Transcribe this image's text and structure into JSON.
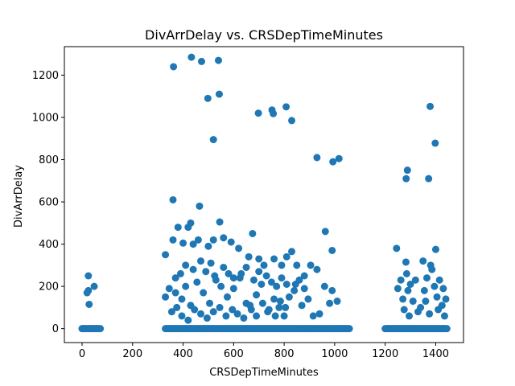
{
  "chart_data": {
    "type": "scatter",
    "title": "DivArrDelay vs. CRSDepTimeMinutes",
    "xlabel": "CRSDepTimeMinutes",
    "ylabel": "DivArrDelay",
    "xlim": [
      -70,
      1510
    ],
    "ylim": [
      -66,
      1335
    ],
    "xticks": [
      0,
      200,
      400,
      600,
      800,
      1000,
      1200,
      1400
    ],
    "yticks": [
      0,
      200,
      400,
      600,
      800,
      1000,
      1200
    ],
    "grid": false,
    "legend": "none",
    "marker_color": "#1f77b4",
    "zero_bands": [
      [
        0,
        75
      ],
      [
        330,
        1058
      ],
      [
        1200,
        1445
      ]
    ],
    "points": [
      [
        25,
        250
      ],
      [
        20,
        170
      ],
      [
        25,
        180
      ],
      [
        28,
        115
      ],
      [
        48,
        200
      ],
      [
        362,
        1240
      ],
      [
        433,
        1285
      ],
      [
        473,
        1265
      ],
      [
        540,
        1270
      ],
      [
        543,
        1110
      ],
      [
        498,
        1090
      ],
      [
        520,
        895
      ],
      [
        698,
        1020
      ],
      [
        752,
        1035
      ],
      [
        757,
        1018
      ],
      [
        808,
        1050
      ],
      [
        830,
        985
      ],
      [
        930,
        810
      ],
      [
        993,
        790
      ],
      [
        1017,
        805
      ],
      [
        360,
        610
      ],
      [
        465,
        580
      ],
      [
        545,
        505
      ],
      [
        420,
        480
      ],
      [
        380,
        480
      ],
      [
        430,
        500
      ],
      [
        675,
        450
      ],
      [
        963,
        460
      ],
      [
        990,
        370
      ],
      [
        830,
        365
      ],
      [
        330,
        350
      ],
      [
        360,
        420
      ],
      [
        400,
        405
      ],
      [
        440,
        400
      ],
      [
        460,
        420
      ],
      [
        500,
        390
      ],
      [
        520,
        420
      ],
      [
        560,
        430
      ],
      [
        590,
        410
      ],
      [
        620,
        380
      ],
      [
        660,
        340
      ],
      [
        700,
        330
      ],
      [
        720,
        300
      ],
      [
        760,
        330
      ],
      [
        790,
        300
      ],
      [
        810,
        340
      ],
      [
        850,
        300
      ],
      [
        880,
        250
      ],
      [
        905,
        300
      ],
      [
        930,
        280
      ],
      [
        960,
        200
      ],
      [
        990,
        180
      ],
      [
        1010,
        130
      ],
      [
        980,
        120
      ],
      [
        940,
        70
      ],
      [
        330,
        150
      ],
      [
        345,
        190
      ],
      [
        370,
        170
      ],
      [
        395,
        140
      ],
      [
        410,
        200
      ],
      [
        430,
        110
      ],
      [
        455,
        220
      ],
      [
        480,
        170
      ],
      [
        505,
        120
      ],
      [
        525,
        250
      ],
      [
        550,
        200
      ],
      [
        575,
        150
      ],
      [
        600,
        190
      ],
      [
        625,
        240
      ],
      [
        650,
        120
      ],
      [
        670,
        90
      ],
      [
        690,
        160
      ],
      [
        710,
        210
      ],
      [
        735,
        80
      ],
      [
        760,
        140
      ],
      [
        780,
        100
      ],
      [
        800,
        60
      ],
      [
        820,
        150
      ],
      [
        845,
        210
      ],
      [
        870,
        110
      ],
      [
        895,
        140
      ],
      [
        915,
        60
      ],
      [
        370,
        240
      ],
      [
        390,
        260
      ],
      [
        410,
        300
      ],
      [
        440,
        280
      ],
      [
        470,
        320
      ],
      [
        490,
        270
      ],
      [
        510,
        310
      ],
      [
        530,
        230
      ],
      [
        560,
        290
      ],
      [
        580,
        260
      ],
      [
        600,
        240
      ],
      [
        630,
        260
      ],
      [
        650,
        290
      ],
      [
        680,
        230
      ],
      [
        700,
        270
      ],
      [
        730,
        250
      ],
      [
        750,
        220
      ],
      [
        770,
        200
      ],
      [
        790,
        240
      ],
      [
        810,
        210
      ],
      [
        840,
        180
      ],
      [
        860,
        230
      ],
      [
        880,
        190
      ],
      [
        355,
        80
      ],
      [
        375,
        100
      ],
      [
        395,
        60
      ],
      [
        420,
        40
      ],
      [
        445,
        90
      ],
      [
        470,
        70
      ],
      [
        495,
        50
      ],
      [
        520,
        80
      ],
      [
        545,
        100
      ],
      [
        570,
        60
      ],
      [
        595,
        90
      ],
      [
        615,
        70
      ],
      [
        640,
        50
      ],
      [
        665,
        110
      ],
      [
        690,
        60
      ],
      [
        715,
        120
      ],
      [
        740,
        90
      ],
      [
        765,
        60
      ],
      [
        785,
        130
      ],
      [
        805,
        100
      ],
      [
        1245,
        380
      ],
      [
        1282,
        315
      ],
      [
        1288,
        750
      ],
      [
        1283,
        710
      ],
      [
        1372,
        710
      ],
      [
        1378,
        1052
      ],
      [
        1398,
        878
      ],
      [
        1400,
        375
      ],
      [
        1350,
        320
      ],
      [
        1380,
        300
      ],
      [
        1250,
        190
      ],
      [
        1262,
        230
      ],
      [
        1270,
        140
      ],
      [
        1285,
        260
      ],
      [
        1290,
        180
      ],
      [
        1300,
        210
      ],
      [
        1310,
        130
      ],
      [
        1320,
        230
      ],
      [
        1340,
        100
      ],
      [
        1355,
        180
      ],
      [
        1365,
        240
      ],
      [
        1385,
        280
      ],
      [
        1395,
        200
      ],
      [
        1405,
        150
      ],
      [
        1415,
        230
      ],
      [
        1425,
        110
      ],
      [
        1430,
        190
      ],
      [
        1440,
        140
      ],
      [
        1275,
        90
      ],
      [
        1295,
        60
      ],
      [
        1330,
        80
      ],
      [
        1375,
        70
      ],
      [
        1410,
        90
      ],
      [
        1435,
        60
      ],
      [
        1360,
        130
      ]
    ]
  }
}
